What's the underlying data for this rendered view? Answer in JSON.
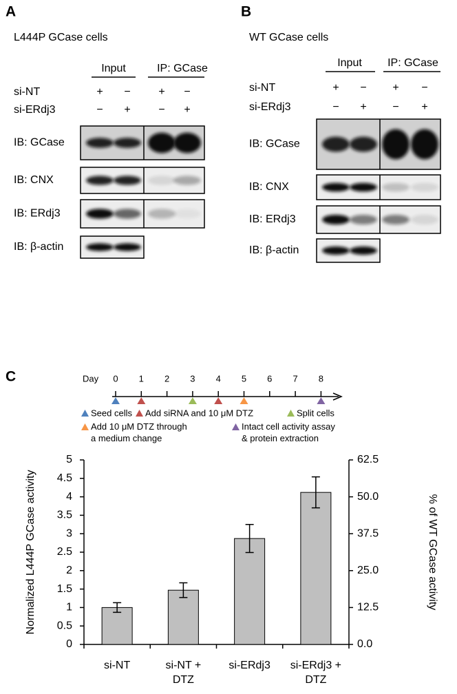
{
  "panel_a": {
    "label": "A",
    "title": "L444P GCase cells",
    "headers": [
      "Input",
      "IP: GCase"
    ],
    "rows": [
      {
        "name": "si-NT",
        "signs": [
          "+",
          "−",
          "+",
          "−"
        ]
      },
      {
        "name": "si-ERdj3",
        "signs": [
          "−",
          "+",
          "−",
          "+"
        ]
      }
    ],
    "blots": [
      "IB: GCase",
      "IB: CNX",
      "IB: ERdj3",
      "IB: β-actin"
    ]
  },
  "panel_b": {
    "label": "B",
    "title": "WT GCase cells",
    "headers": [
      "Input",
      "IP: GCase"
    ],
    "rows": [
      {
        "name": "si-NT",
        "signs": [
          "+",
          "−",
          "+",
          "−"
        ]
      },
      {
        "name": "si-ERdj3",
        "signs": [
          "−",
          "+",
          "−",
          "+"
        ]
      }
    ],
    "blots": [
      "IB: GCase",
      "IB: CNX",
      "IB: ERdj3",
      "IB: β-actin"
    ]
  },
  "panel_c": {
    "label": "C",
    "timeline": {
      "title": "Day",
      "days": [
        0,
        1,
        2,
        3,
        4,
        5,
        6,
        7,
        8
      ],
      "markers": [
        {
          "day": 0,
          "color": "#4f81bd"
        },
        {
          "day": 1,
          "color": "#c0504d"
        },
        {
          "day": 3,
          "color": "#9bbb59"
        },
        {
          "day": 4,
          "color": "#c0504d"
        },
        {
          "day": 5,
          "color": "#f79646"
        },
        {
          "day": 8,
          "color": "#8064a2"
        }
      ]
    },
    "legend": [
      {
        "text": "Seed cells",
        "color": "#4f81bd"
      },
      {
        "text": "Add siRNA and 10 μM DTZ",
        "color": "#c0504d"
      },
      {
        "text": "Split cells",
        "color": "#9bbb59"
      },
      {
        "text": "Add 10 μM DTZ through\na medium change",
        "color": "#f79646"
      },
      {
        "text": "Intact cell activity assay\n& protein extraction",
        "color": "#8064a2"
      }
    ]
  },
  "chart_data": {
    "type": "bar",
    "categories": [
      "si-NT",
      "si-NT +\nDTZ",
      "si-ERdj3",
      "si-ERdj3 +\nDTZ"
    ],
    "values": [
      1,
      1.47,
      2.87,
      4.12
    ],
    "errors": [
      0.13,
      0.2,
      0.38,
      0.42
    ],
    "color": "#bfbfbf",
    "y_label": "Normalized L444P GCase activity",
    "y2_label": "% of WT GCase activity",
    "ylim": [
      0,
      5
    ],
    "yticks": [
      0,
      0.5,
      1,
      1.5,
      2,
      2.5,
      3,
      3.5,
      4,
      4.5,
      5
    ],
    "y2lim": [
      0,
      62.5
    ],
    "y2ticks": [
      {
        "value": 0,
        "label": "0.0"
      },
      12.5,
      {
        "value": 25,
        "label": "25.0"
      },
      37.5,
      {
        "value": 50,
        "label": "50.0"
      },
      62.5
    ]
  }
}
